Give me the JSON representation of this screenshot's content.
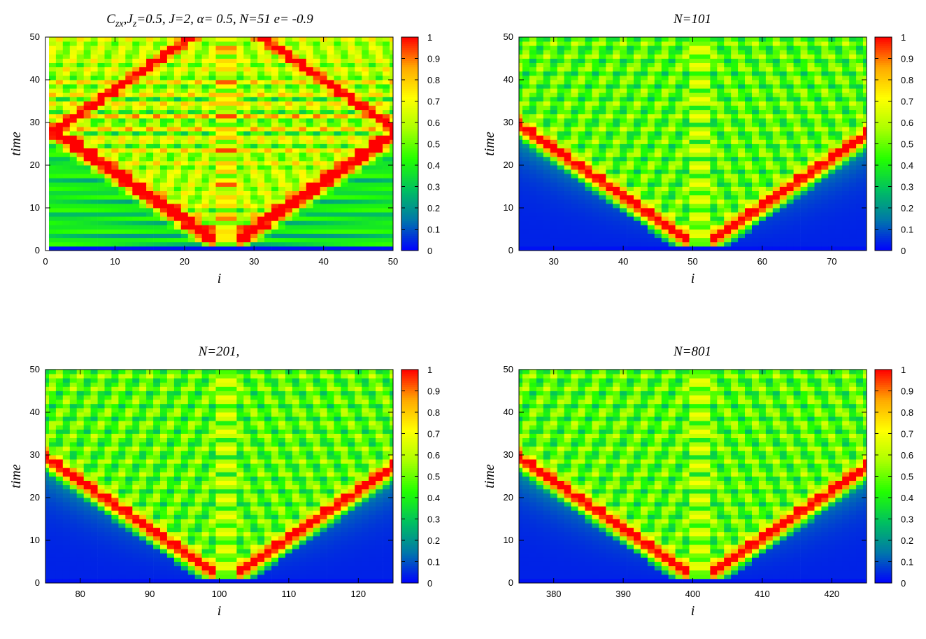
{
  "colors": {
    "palette": [
      "#0000ff",
      "#0077aa",
      "#00c060",
      "#22ff00",
      "#aaff00",
      "#ffff00",
      "#ffaa00",
      "#ff0000"
    ],
    "frame": "#000000"
  },
  "chart_data": [
    {
      "type": "heatmap",
      "title": "C",
      "title_sub1": "zx",
      "title_mid": ",J",
      "title_sub2": "z",
      "title_rest": "=0.5,  J=2, α= 0.5, N=51 e= -0.9",
      "xlabel": "i",
      "ylabel": "time",
      "xlim": [
        0,
        50
      ],
      "ylim": [
        0,
        50
      ],
      "xticks": [
        0,
        10,
        20,
        30,
        40,
        50
      ],
      "yticks": [
        0,
        10,
        20,
        30,
        40,
        50
      ],
      "colorbar_ticks": [
        "0",
        "0.1",
        "0.2",
        "0.3",
        "0.4",
        "0.5",
        "0.6",
        "0.7",
        "0.8",
        "0.9",
        "1"
      ],
      "center_site": 26,
      "site_range": [
        1,
        51
      ],
      "front_speed": 0.9,
      "reflecting": true
    },
    {
      "type": "heatmap",
      "title": "N=101",
      "xlabel": "i",
      "ylabel": "time",
      "xlim": [
        25,
        75
      ],
      "ylim": [
        0,
        50
      ],
      "xticks": [
        30,
        40,
        50,
        60,
        70
      ],
      "yticks": [
        0,
        10,
        20,
        30,
        40,
        50
      ],
      "colorbar_ticks": [
        "0",
        "0.1",
        "0.2",
        "0.3",
        "0.4",
        "0.5",
        "0.6",
        "0.7",
        "0.8",
        "0.9",
        "1"
      ],
      "center_site": 51,
      "site_range": [
        25,
        75
      ],
      "front_speed": 0.9,
      "reflecting": false
    },
    {
      "type": "heatmap",
      "title": "N=201,",
      "xlabel": "i",
      "ylabel": "time",
      "xlim": [
        75,
        125
      ],
      "ylim": [
        0,
        50
      ],
      "xticks": [
        80,
        90,
        100,
        110,
        120
      ],
      "yticks": [
        0,
        10,
        20,
        30,
        40,
        50
      ],
      "colorbar_ticks": [
        "0",
        "0.1",
        "0.2",
        "0.3",
        "0.4",
        "0.5",
        "0.6",
        "0.7",
        "0.8",
        "0.9",
        "1"
      ],
      "center_site": 101,
      "site_range": [
        75,
        125
      ],
      "front_speed": 0.9,
      "reflecting": false
    },
    {
      "type": "heatmap",
      "title": "N=801",
      "xlabel": "i",
      "ylabel": "time",
      "xlim": [
        375,
        425
      ],
      "ylim": [
        0,
        50
      ],
      "xticks": [
        380,
        390,
        400,
        410,
        420
      ],
      "yticks": [
        0,
        10,
        20,
        30,
        40,
        50
      ],
      "colorbar_ticks": [
        "0",
        "0.1",
        "0.2",
        "0.3",
        "0.4",
        "0.5",
        "0.6",
        "0.7",
        "0.8",
        "0.9",
        "1"
      ],
      "center_site": 401,
      "site_range": [
        375,
        425
      ],
      "front_speed": 0.9,
      "reflecting": false
    }
  ]
}
